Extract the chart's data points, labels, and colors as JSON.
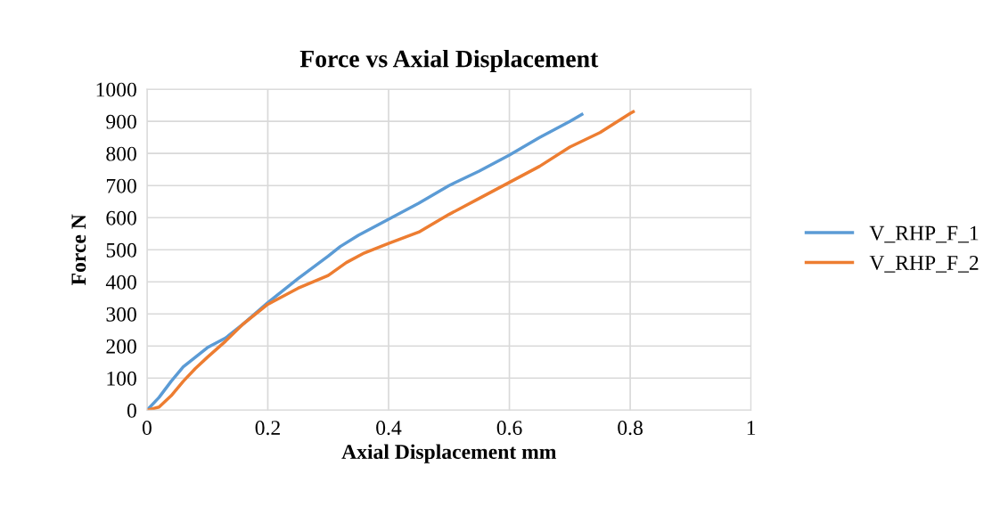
{
  "chart_data": {
    "type": "line",
    "title": "Force vs Axial Displacement",
    "xlabel": "Axial Displacement mm",
    "ylabel": "Force N",
    "xlim": [
      0,
      1
    ],
    "xticks": [
      0,
      0.2,
      0.4,
      0.6,
      0.8,
      1
    ],
    "ylim": [
      0,
      1000
    ],
    "yticks": [
      0,
      100,
      200,
      300,
      400,
      500,
      600,
      700,
      800,
      900,
      1000
    ],
    "grid": true,
    "legend": "right",
    "marker": "none",
    "line_style": "solid",
    "series": [
      {
        "name": "V_RHP_F_1",
        "color": "#5b9bd5",
        "x": [
          0,
          0.02,
          0.04,
          0.06,
          0.08,
          0.1,
          0.13,
          0.16,
          0.2,
          0.25,
          0.3,
          0.32,
          0.35,
          0.4,
          0.45,
          0.5,
          0.55,
          0.6,
          0.65,
          0.7,
          0.72
        ],
        "values": [
          0,
          40,
          90,
          135,
          165,
          195,
          225,
          270,
          335,
          410,
          480,
          510,
          545,
          595,
          645,
          700,
          745,
          795,
          850,
          900,
          922
        ]
      },
      {
        "name": "V_RHP_F_2",
        "color": "#ed7d31",
        "x": [
          0,
          0.02,
          0.04,
          0.06,
          0.08,
          0.1,
          0.13,
          0.16,
          0.2,
          0.25,
          0.3,
          0.33,
          0.36,
          0.4,
          0.45,
          0.5,
          0.55,
          0.6,
          0.65,
          0.7,
          0.75,
          0.8,
          0.805
        ],
        "values": [
          0,
          10,
          45,
          90,
          130,
          165,
          215,
          270,
          330,
          380,
          420,
          460,
          490,
          520,
          555,
          610,
          660,
          710,
          760,
          820,
          865,
          925,
          930
        ]
      }
    ]
  }
}
